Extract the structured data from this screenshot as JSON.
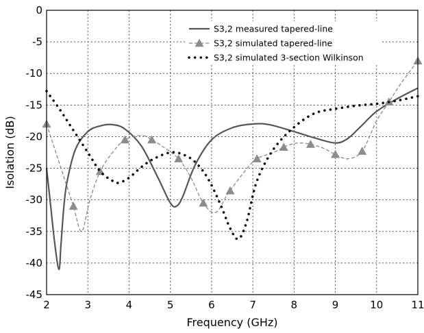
{
  "chart_data": {
    "type": "line",
    "title": "",
    "xlabel": "Frequency (GHz)",
    "ylabel": "Isolation (dB)",
    "xlim": [
      2,
      11
    ],
    "ylim": [
      -45,
      0
    ],
    "xticks": [
      2,
      3,
      4,
      5,
      6,
      7,
      8,
      9,
      10,
      11
    ],
    "yticks": [
      0,
      -5,
      -10,
      -15,
      -20,
      -25,
      -30,
      -35,
      -40,
      -45
    ],
    "grid": true,
    "legend_position": "top-right",
    "series": [
      {
        "name": "S3,2 measured tapered-line",
        "style": "solid",
        "color": "#555555",
        "x": [
          2.0,
          2.1,
          2.2,
          2.3,
          2.35,
          2.42,
          2.5,
          2.7,
          3.0,
          3.3,
          3.6,
          3.9,
          4.3,
          4.7,
          5.0,
          5.15,
          5.3,
          5.6,
          6.0,
          6.5,
          7.0,
          7.4,
          8.0,
          8.5,
          9.0,
          9.3,
          9.6,
          10.0,
          10.5,
          11.0
        ],
        "y": [
          -25,
          -31,
          -37,
          -41,
          -37,
          -31,
          -27,
          -22,
          -19.2,
          -18.3,
          -18.1,
          -18.8,
          -21.5,
          -26.5,
          -30.5,
          -31.0,
          -29.5,
          -24.5,
          -20.5,
          -18.6,
          -18.0,
          -18.1,
          -19.2,
          -20.2,
          -21.0,
          -20.3,
          -18.5,
          -16.0,
          -14.0,
          -12.3
        ]
      },
      {
        "name": "S3,2 simulated tapered-line",
        "style": "dashed",
        "color": "#888888",
        "marker": "triangle",
        "x": [
          2.0,
          2.2,
          2.45,
          2.65,
          2.85,
          3.05,
          3.3,
          3.6,
          3.9,
          4.3,
          4.55,
          4.8,
          5.2,
          5.5,
          5.8,
          6.1,
          6.4,
          6.8,
          7.1,
          7.5,
          7.8,
          8.1,
          8.4,
          8.7,
          9.0,
          9.3,
          9.65,
          10.0,
          10.3,
          10.6,
          11.0
        ],
        "y": [
          -18.0,
          -22.0,
          -27.0,
          -31.0,
          -35.0,
          -30.0,
          -25.5,
          -22.5,
          -20.5,
          -19.8,
          -20.5,
          -21.5,
          -23.5,
          -26.5,
          -30.5,
          -32.0,
          -29.0,
          -25.5,
          -23.5,
          -22.5,
          -21.5,
          -21.0,
          -21.2,
          -21.8,
          -22.8,
          -23.5,
          -22.3,
          -17.5,
          -14.5,
          -11.5,
          -8.0
        ],
        "marker_x": [
          2.0,
          2.65,
          3.3,
          3.9,
          4.55,
          5.2,
          5.8,
          6.45,
          7.1,
          7.75,
          8.4,
          9.0,
          9.65,
          10.3,
          11.0
        ]
      },
      {
        "name": "S3,2 simulated 3-section Wilkinson",
        "style": "dotted",
        "color": "#111111",
        "x": [
          2.0,
          2.3,
          2.6,
          3.0,
          3.3,
          3.6,
          3.75,
          4.0,
          4.3,
          4.6,
          5.0,
          5.3,
          5.6,
          5.9,
          6.2,
          6.45,
          6.65,
          6.85,
          7.1,
          7.5,
          8.0,
          8.5,
          9.0,
          9.5,
          10.0,
          10.5,
          11.0
        ],
        "y": [
          -12.8,
          -15.5,
          -18.5,
          -22.5,
          -25.5,
          -27.0,
          -27.3,
          -26.5,
          -24.8,
          -23.5,
          -22.5,
          -22.8,
          -24.0,
          -26.5,
          -30.5,
          -34.5,
          -36.2,
          -33.5,
          -27.0,
          -22.0,
          -18.5,
          -16.3,
          -15.6,
          -15.1,
          -14.8,
          -14.3,
          -13.6
        ]
      }
    ]
  }
}
